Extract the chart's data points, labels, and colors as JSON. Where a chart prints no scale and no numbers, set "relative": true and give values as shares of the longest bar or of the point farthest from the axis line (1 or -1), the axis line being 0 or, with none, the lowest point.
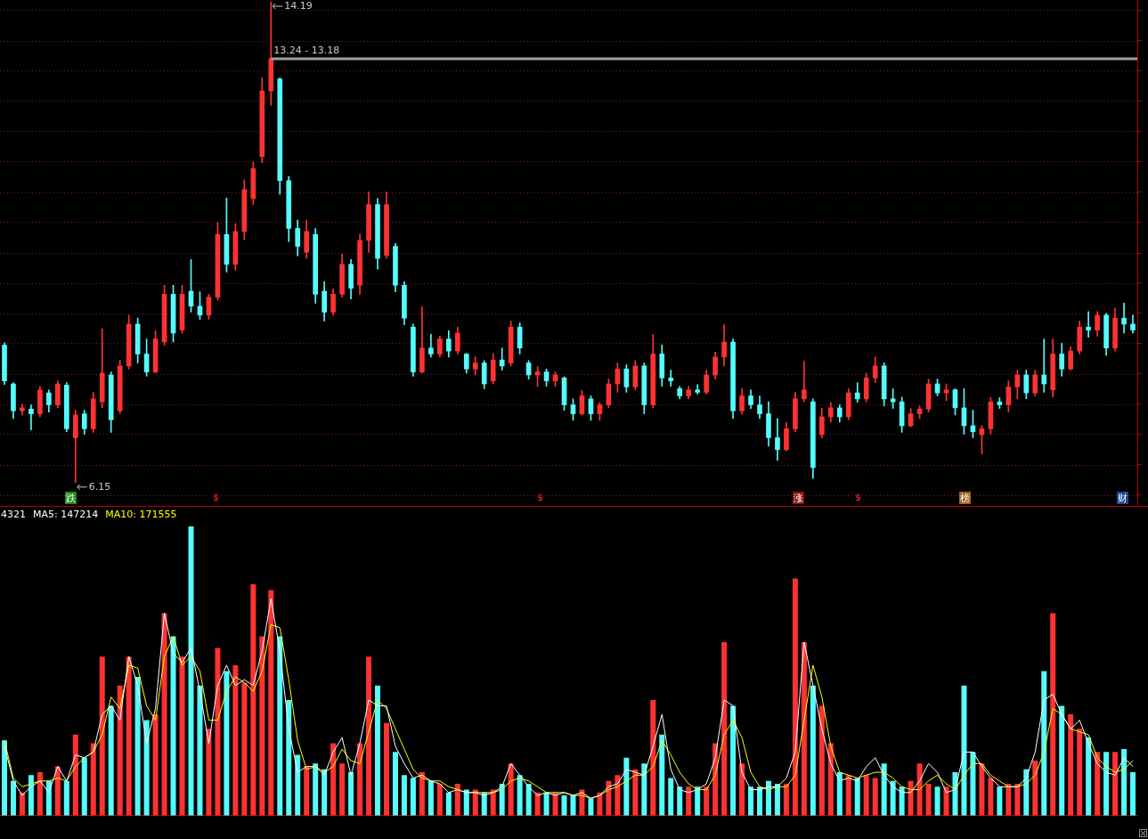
{
  "chart_data": [
    {
      "type": "candlestick",
      "categories": [
        null,
        null,
        null,
        null,
        null,
        null,
        null,
        null,
        null,
        null,
        null,
        null,
        null,
        null,
        null,
        null,
        null,
        null,
        null,
        null,
        null,
        null,
        null,
        null,
        null,
        null,
        null,
        null,
        null,
        null,
        null,
        null,
        null,
        null,
        null,
        null,
        null,
        null,
        null,
        null,
        null,
        null,
        null,
        null,
        null,
        null,
        null,
        null,
        null,
        null,
        null,
        null,
        null,
        null,
        null,
        null,
        null,
        null,
        null,
        null,
        null,
        null,
        null,
        null,
        null,
        null,
        null,
        null,
        null,
        null,
        null,
        null,
        null,
        null,
        null,
        null,
        null,
        null,
        null,
        null,
        null,
        null,
        null,
        null,
        null,
        null,
        null,
        null,
        null,
        null,
        null,
        null,
        null,
        null,
        null,
        null,
        null,
        null,
        null,
        null,
        null,
        null,
        null,
        null,
        null,
        null,
        null,
        null,
        null,
        null,
        null,
        null,
        null,
        null,
        null,
        null,
        null,
        null,
        null,
        null,
        null,
        null,
        null,
        null,
        null,
        null,
        null,
        null
      ],
      "ohlc": [
        [
          8.45,
          8.49,
          7.79,
          7.85
        ],
        [
          7.8,
          7.82,
          7.22,
          7.35
        ],
        [
          7.35,
          7.46,
          7.28,
          7.4
        ],
        [
          7.38,
          7.45,
          7.03,
          7.3
        ],
        [
          7.3,
          7.76,
          7.25,
          7.7
        ],
        [
          7.65,
          7.7,
          7.33,
          7.45
        ],
        [
          7.45,
          7.85,
          7.4,
          7.8
        ],
        [
          7.78,
          7.82,
          7.0,
          7.05
        ],
        [
          6.9,
          7.36,
          6.15,
          7.28
        ],
        [
          7.3,
          7.36,
          6.96,
          7.05
        ],
        [
          7.05,
          7.66,
          6.99,
          7.55
        ],
        [
          7.5,
          8.72,
          7.4,
          7.98
        ],
        [
          7.95,
          8.0,
          6.99,
          7.2
        ],
        [
          7.35,
          8.2,
          7.3,
          8.1
        ],
        [
          8.1,
          8.95,
          8.05,
          8.8
        ],
        [
          8.8,
          8.9,
          8.15,
          8.3
        ],
        [
          8.3,
          8.55,
          7.93,
          8.0
        ],
        [
          8.0,
          8.69,
          7.98,
          8.55
        ],
        [
          8.5,
          9.45,
          8.45,
          9.3
        ],
        [
          9.3,
          9.45,
          8.5,
          8.65
        ],
        [
          8.7,
          9.45,
          8.65,
          9.3
        ],
        [
          9.35,
          9.88,
          9.0,
          9.1
        ],
        [
          9.1,
          9.34,
          8.88,
          8.95
        ],
        [
          8.95,
          9.3,
          8.88,
          9.25
        ],
        [
          9.25,
          10.5,
          9.2,
          10.3
        ],
        [
          10.3,
          10.91,
          9.67,
          9.8
        ],
        [
          9.8,
          10.48,
          9.7,
          10.35
        ],
        [
          10.35,
          11.21,
          10.21,
          11.05
        ],
        [
          10.9,
          11.51,
          10.8,
          11.4
        ],
        [
          11.6,
          12.92,
          11.5,
          12.7
        ],
        [
          12.7,
          14.19,
          12.46,
          13.24
        ],
        [
          12.9,
          12.92,
          10.97,
          11.2
        ],
        [
          11.2,
          11.27,
          10.18,
          10.4
        ],
        [
          10.4,
          10.54,
          9.94,
          10.1
        ],
        [
          10.0,
          10.54,
          9.9,
          10.35
        ],
        [
          10.3,
          10.4,
          9.15,
          9.3
        ],
        [
          9.35,
          9.51,
          8.85,
          9.0
        ],
        [
          9.0,
          9.39,
          8.95,
          9.3
        ],
        [
          9.3,
          9.97,
          9.25,
          9.8
        ],
        [
          9.8,
          9.88,
          9.22,
          9.4
        ],
        [
          9.45,
          10.3,
          9.3,
          10.2
        ],
        [
          10.2,
          11.01,
          10.0,
          10.8
        ],
        [
          10.8,
          10.9,
          9.72,
          9.9
        ],
        [
          9.95,
          11.01,
          9.9,
          10.8
        ],
        [
          10.1,
          10.15,
          9.34,
          9.45
        ],
        [
          9.45,
          9.51,
          8.79,
          8.9
        ],
        [
          8.75,
          8.8,
          7.93,
          8.0
        ],
        [
          8.0,
          9.09,
          7.98,
          8.4
        ],
        [
          8.4,
          8.63,
          8.25,
          8.3
        ],
        [
          8.3,
          8.6,
          8.25,
          8.55
        ],
        [
          8.55,
          8.69,
          8.25,
          8.35
        ],
        [
          8.35,
          8.75,
          8.3,
          8.65
        ],
        [
          8.3,
          8.31,
          7.98,
          8.05
        ],
        [
          8.05,
          8.25,
          7.95,
          8.15
        ],
        [
          8.15,
          8.19,
          7.72,
          7.8
        ],
        [
          7.85,
          8.31,
          7.8,
          8.2
        ],
        [
          8.2,
          8.4,
          8.03,
          8.1
        ],
        [
          8.15,
          8.85,
          8.1,
          8.75
        ],
        [
          8.75,
          8.82,
          8.3,
          8.4
        ],
        [
          8.15,
          8.19,
          7.88,
          7.95
        ],
        [
          7.95,
          8.09,
          7.76,
          8.0
        ],
        [
          8.0,
          8.05,
          7.76,
          7.85
        ],
        [
          7.85,
          8.0,
          7.76,
          7.95
        ],
        [
          7.9,
          7.92,
          7.36,
          7.45
        ],
        [
          7.45,
          7.55,
          7.19,
          7.3
        ],
        [
          7.3,
          7.69,
          7.28,
          7.6
        ],
        [
          7.55,
          7.6,
          7.19,
          7.3
        ],
        [
          7.3,
          7.49,
          7.19,
          7.45
        ],
        [
          7.45,
          7.88,
          7.4,
          7.8
        ],
        [
          7.8,
          8.15,
          7.66,
          8.05
        ],
        [
          8.05,
          8.12,
          7.66,
          7.75
        ],
        [
          7.75,
          8.19,
          7.7,
          8.1
        ],
        [
          8.1,
          8.15,
          7.3,
          7.45
        ],
        [
          7.45,
          8.63,
          7.4,
          8.3
        ],
        [
          8.3,
          8.45,
          7.76,
          7.9
        ],
        [
          7.9,
          8.03,
          7.76,
          7.85
        ],
        [
          7.72,
          7.76,
          7.55,
          7.6
        ],
        [
          7.6,
          7.76,
          7.55,
          7.7
        ],
        [
          7.7,
          7.79,
          7.63,
          7.66
        ],
        [
          7.66,
          8.03,
          7.63,
          7.95
        ],
        [
          7.95,
          8.33,
          7.88,
          8.25
        ],
        [
          8.25,
          8.79,
          8.1,
          8.5
        ],
        [
          8.5,
          8.55,
          7.22,
          7.35
        ],
        [
          7.35,
          7.72,
          7.3,
          7.6
        ],
        [
          7.6,
          7.7,
          7.39,
          7.45
        ],
        [
          7.45,
          7.6,
          7.22,
          7.3
        ],
        [
          7.3,
          7.5,
          6.76,
          6.9
        ],
        [
          6.9,
          7.22,
          6.52,
          6.7
        ],
        [
          6.7,
          7.16,
          6.68,
          7.05
        ],
        [
          7.05,
          7.66,
          7.0,
          7.55
        ],
        [
          7.55,
          8.18,
          7.5,
          7.7
        ],
        [
          7.5,
          7.55,
          6.22,
          6.4
        ],
        [
          6.95,
          7.39,
          6.9,
          7.25
        ],
        [
          7.25,
          7.49,
          7.16,
          7.4
        ],
        [
          7.4,
          7.45,
          7.16,
          7.25
        ],
        [
          7.25,
          7.72,
          7.2,
          7.65
        ],
        [
          7.65,
          7.82,
          7.49,
          7.55
        ],
        [
          7.55,
          7.98,
          7.5,
          7.9
        ],
        [
          7.9,
          8.25,
          7.82,
          8.1
        ],
        [
          8.1,
          8.15,
          7.43,
          7.55
        ],
        [
          7.55,
          7.72,
          7.39,
          7.5
        ],
        [
          7.5,
          7.58,
          6.99,
          7.1
        ],
        [
          7.1,
          7.39,
          7.08,
          7.3
        ],
        [
          7.3,
          7.43,
          7.22,
          7.38
        ],
        [
          7.38,
          7.88,
          7.33,
          7.8
        ],
        [
          7.8,
          7.88,
          7.6,
          7.65
        ],
        [
          7.65,
          7.8,
          7.52,
          7.7
        ],
        [
          7.7,
          7.72,
          7.28,
          7.4
        ],
        [
          7.4,
          7.72,
          6.96,
          7.1
        ],
        [
          7.1,
          7.36,
          6.9,
          7.0
        ],
        [
          6.95,
          7.1,
          6.63,
          7.05
        ],
        [
          7.05,
          7.57,
          6.96,
          7.5
        ],
        [
          7.5,
          7.57,
          7.39,
          7.45
        ],
        [
          7.45,
          7.85,
          7.33,
          7.75
        ],
        [
          7.75,
          8.03,
          7.55,
          7.95
        ],
        [
          7.95,
          8.03,
          7.55,
          7.65
        ],
        [
          7.65,
          8.03,
          7.6,
          7.95
        ],
        [
          7.95,
          8.55,
          7.66,
          7.8
        ],
        [
          7.7,
          8.55,
          7.58,
          8.3
        ],
        [
          8.3,
          8.48,
          7.93,
          8.05
        ],
        [
          8.05,
          8.42,
          8.03,
          8.35
        ],
        [
          8.35,
          8.85,
          8.3,
          8.75
        ],
        [
          8.75,
          9.01,
          8.58,
          8.7
        ],
        [
          8.7,
          9.01,
          8.6,
          8.95
        ],
        [
          8.95,
          8.98,
          8.28,
          8.4
        ],
        [
          8.4,
          9.07,
          8.35,
          8.9
        ],
        [
          8.9,
          9.15,
          8.65,
          8.8
        ],
        [
          8.8,
          8.95,
          8.65,
          8.7
        ]
      ],
      "colors": [
        "#54fcfc",
        "#54fcfc",
        "#ff3232",
        "#54fcfc",
        "#ff3232",
        "#54fcfc",
        "#ff3232",
        "#54fcfc",
        "#ff3232",
        "#54fcfc",
        "#ff3232",
        "#ff3232",
        "#54fcfc",
        "#ff3232",
        "#ff3232",
        "#54fcfc",
        "#54fcfc",
        "#ff3232",
        "#ff3232",
        "#54fcfc",
        "#ff3232",
        "#54fcfc",
        "#54fcfc",
        "#ff3232",
        "#ff3232",
        "#54fcfc",
        "#ff3232",
        "#ff3232",
        "#ff3232",
        "#ff3232",
        "#ff3232",
        "#54fcfc",
        "#54fcfc",
        "#54fcfc",
        "#ff3232",
        "#54fcfc",
        "#54fcfc",
        "#ff3232",
        "#ff3232",
        "#54fcfc",
        "#ff3232",
        "#ff3232",
        "#54fcfc",
        "#ff3232",
        "#54fcfc",
        "#54fcfc",
        "#54fcfc",
        "#ff3232",
        "#54fcfc",
        "#ff3232",
        "#54fcfc",
        "#ff3232",
        "#54fcfc",
        "#ff3232",
        "#54fcfc",
        "#ff3232",
        "#54fcfc",
        "#ff3232",
        "#54fcfc",
        "#54fcfc",
        "#ff3232",
        "#54fcfc",
        "#ff3232",
        "#54fcfc",
        "#54fcfc",
        "#ff3232",
        "#54fcfc",
        "#ff3232",
        "#ff3232",
        "#ff3232",
        "#54fcfc",
        "#ff3232",
        "#54fcfc",
        "#ff3232",
        "#54fcfc",
        "#54fcfc",
        "#54fcfc",
        "#ff3232",
        "#54fcfc",
        "#ff3232",
        "#ff3232",
        "#ff3232",
        "#54fcfc",
        "#ff3232",
        "#54fcfc",
        "#54fcfc",
        "#54fcfc",
        "#54fcfc",
        "#ff3232",
        "#ff3232",
        "#ff3232",
        "#54fcfc",
        "#ff3232",
        "#ff3232",
        "#54fcfc",
        "#ff3232",
        "#54fcfc",
        "#ff3232",
        "#ff3232",
        "#54fcfc",
        "#54fcfc",
        "#54fcfc",
        "#ff3232",
        "#ff3232",
        "#ff3232",
        "#54fcfc",
        "#ff3232",
        "#54fcfc",
        "#54fcfc",
        "#54fcfc",
        "#ff3232",
        "#ff3232",
        "#54fcfc",
        "#ff3232",
        "#ff3232",
        "#54fcfc",
        "#ff3232",
        "#54fcfc",
        "#ff3232",
        "#54fcfc",
        "#ff3232",
        "#ff3232",
        "#54fcfc",
        "#ff3232",
        "#54fcfc",
        "#ff3232",
        "#54fcfc",
        "#54fcfc"
      ],
      "ylim": [
        5.76,
        14.22
      ],
      "yticks": [
        {
          "value": 5.94,
          "label": null
        },
        {
          "value": 6.45,
          "label": null
        },
        {
          "value": 6.96,
          "label": null
        },
        {
          "value": 7.46,
          "label": null
        },
        {
          "value": 7.97,
          "label": null
        },
        {
          "value": 8.48,
          "label": null
        },
        {
          "value": 8.98,
          "label": null
        },
        {
          "value": 9.49,
          "label": null
        },
        {
          "value": 9.99,
          "label": null
        },
        {
          "value": 10.51,
          "label": null
        },
        {
          "value": 11.01,
          "label": null
        },
        {
          "value": 11.52,
          "label": null
        },
        {
          "value": 12.03,
          "label": null
        },
        {
          "value": 12.53,
          "label": null
        },
        {
          "value": 13.04,
          "label": null
        },
        {
          "value": 13.54,
          "label": null
        },
        {
          "value": 14.05,
          "label": null
        }
      ],
      "grid": "y",
      "tick_labels": false,
      "ref_lines": [
        {
          "axis": "y",
          "value": 13.24,
          "label": "13.24 - 13.18",
          "color": "#a0a0a0"
        }
      ],
      "annotations": [
        "14.19",
        "6.15",
        "跌",
        "$",
        "$",
        "涨",
        "$",
        "榜",
        "财"
      ]
    },
    {
      "type": "bar",
      "categories": [
        null,
        null,
        null,
        null,
        null,
        null,
        null,
        null,
        null,
        null,
        null,
        null,
        null,
        null,
        null,
        null,
        null,
        null,
        null,
        null,
        null,
        null,
        null,
        null,
        null,
        null,
        null,
        null,
        null,
        null,
        null,
        null,
        null,
        null,
        null,
        null,
        null,
        null,
        null,
        null,
        null,
        null,
        null,
        null,
        null,
        null,
        null,
        null,
        null,
        null,
        null,
        null,
        null,
        null,
        null,
        null,
        null,
        null,
        null,
        null,
        null,
        null,
        null,
        null,
        null,
        null,
        null,
        null,
        null,
        null,
        null,
        null,
        null,
        null,
        null,
        null,
        null,
        null,
        null,
        null,
        null,
        null,
        null,
        null,
        null,
        null,
        null,
        null,
        null,
        null,
        null,
        null,
        null,
        null,
        null,
        null,
        null,
        null,
        null,
        null,
        null,
        null,
        null,
        null,
        null,
        null,
        null,
        null,
        null,
        null,
        null,
        null,
        null,
        null,
        null,
        null,
        null,
        null,
        null,
        null,
        null,
        null,
        null,
        null,
        null,
        null,
        null,
        null
      ],
      "relative": true,
      "series": [
        {
          "type": "bar",
          "values": [
            0.26,
            0.12,
            0.08,
            0.14,
            0.15,
            0.12,
            0.17,
            0.12,
            0.28,
            0.2,
            0.25,
            0.55,
            0.38,
            0.45,
            0.55,
            0.48,
            0.33,
            0.35,
            0.7,
            0.62,
            0.55,
            1.0,
            0.45,
            0.3,
            0.58,
            0.5,
            0.52,
            0.46,
            0.8,
            0.62,
            0.78,
            0.62,
            0.4,
            0.21,
            0.17,
            0.18,
            0.16,
            0.25,
            0.18,
            0.15,
            0.25,
            0.55,
            0.45,
            0.32,
            0.22,
            0.14,
            0.13,
            0.15,
            0.12,
            0.11,
            0.08,
            0.11,
            0.09,
            0.09,
            0.08,
            0.09,
            0.11,
            0.18,
            0.14,
            0.11,
            0.08,
            0.08,
            0.08,
            0.07,
            0.07,
            0.09,
            0.06,
            0.08,
            0.12,
            0.14,
            0.2,
            0.16,
            0.18,
            0.4,
            0.28,
            0.13,
            0.1,
            0.1,
            0.1,
            0.1,
            0.25,
            0.6,
            0.38,
            0.18,
            0.1,
            0.1,
            0.12,
            0.11,
            0.11,
            0.82,
            0.6,
            0.45,
            0.38,
            0.25,
            0.15,
            0.14,
            0.13,
            0.14,
            0.13,
            0.18,
            0.12,
            0.1,
            0.12,
            0.18,
            0.11,
            0.1,
            0.1,
            0.15,
            0.45,
            0.22,
            0.18,
            0.13,
            0.1,
            0.11,
            0.11,
            0.16,
            0.19,
            0.5,
            0.7,
            0.38,
            0.35,
            0.3,
            0.27,
            0.22,
            0.22,
            0.22,
            0.23,
            0.15
          ],
          "colors": [
            "#54fcfc",
            "#54fcfc",
            "#ff3232",
            "#54fcfc",
            "#ff3232",
            "#54fcfc",
            "#ff3232",
            "#54fcfc",
            "#ff3232",
            "#54fcfc",
            "#ff3232",
            "#ff3232",
            "#54fcfc",
            "#ff3232",
            "#ff3232",
            "#54fcfc",
            "#54fcfc",
            "#ff3232",
            "#ff3232",
            "#54fcfc",
            "#ff3232",
            "#54fcfc",
            "#54fcfc",
            "#ff3232",
            "#ff3232",
            "#54fcfc",
            "#ff3232",
            "#ff3232",
            "#ff3232",
            "#ff3232",
            "#ff3232",
            "#54fcfc",
            "#54fcfc",
            "#54fcfc",
            "#ff3232",
            "#54fcfc",
            "#54fcfc",
            "#ff3232",
            "#ff3232",
            "#54fcfc",
            "#ff3232",
            "#ff3232",
            "#54fcfc",
            "#ff3232",
            "#54fcfc",
            "#54fcfc",
            "#54fcfc",
            "#ff3232",
            "#54fcfc",
            "#ff3232",
            "#54fcfc",
            "#ff3232",
            "#54fcfc",
            "#ff3232",
            "#54fcfc",
            "#ff3232",
            "#54fcfc",
            "#ff3232",
            "#54fcfc",
            "#54fcfc",
            "#ff3232",
            "#54fcfc",
            "#ff3232",
            "#54fcfc",
            "#54fcfc",
            "#ff3232",
            "#54fcfc",
            "#ff3232",
            "#ff3232",
            "#ff3232",
            "#54fcfc",
            "#ff3232",
            "#54fcfc",
            "#ff3232",
            "#54fcfc",
            "#54fcfc",
            "#54fcfc",
            "#ff3232",
            "#54fcfc",
            "#ff3232",
            "#ff3232",
            "#ff3232",
            "#54fcfc",
            "#ff3232",
            "#54fcfc",
            "#54fcfc",
            "#54fcfc",
            "#54fcfc",
            "#ff3232",
            "#ff3232",
            "#ff3232",
            "#54fcfc",
            "#ff3232",
            "#ff3232",
            "#54fcfc",
            "#ff3232",
            "#54fcfc",
            "#ff3232",
            "#ff3232",
            "#54fcfc",
            "#54fcfc",
            "#54fcfc",
            "#ff3232",
            "#ff3232",
            "#ff3232",
            "#54fcfc",
            "#ff3232",
            "#54fcfc",
            "#54fcfc",
            "#54fcfc",
            "#ff3232",
            "#ff3232",
            "#54fcfc",
            "#ff3232",
            "#ff3232",
            "#54fcfc",
            "#ff3232",
            "#54fcfc",
            "#ff3232",
            "#54fcfc",
            "#ff3232",
            "#ff3232",
            "#54fcfc",
            "#ff3232",
            "#54fcfc",
            "#ff3232",
            "#54fcfc",
            "#54fcfc"
          ]
        },
        {
          "type": "line",
          "name": "MA5: 147214",
          "color": "#ffffff",
          "values": [
            0.24,
            0.12,
            0.07,
            0.1,
            0.12,
            0.08,
            0.17,
            0.12,
            0.21,
            0.2,
            0.22,
            0.35,
            0.38,
            0.33,
            0.55,
            0.45,
            0.25,
            0.37,
            0.7,
            0.56,
            0.53,
            0.58,
            0.43,
            0.25,
            0.45,
            0.52,
            0.45,
            0.47,
            0.45,
            0.57,
            0.75,
            0.57,
            0.3,
            0.15,
            0.17,
            0.17,
            0.14,
            0.22,
            0.27,
            0.14,
            0.25,
            0.4,
            0.38,
            0.38,
            0.24,
            0.18,
            0.13,
            0.14,
            0.12,
            0.11,
            0.08,
            0.09,
            0.08,
            0.08,
            0.07,
            0.08,
            0.1,
            0.18,
            0.14,
            0.1,
            0.07,
            0.08,
            0.07,
            0.08,
            0.07,
            0.08,
            0.06,
            0.07,
            0.1,
            0.11,
            0.16,
            0.15,
            0.14,
            0.24,
            0.35,
            0.16,
            0.09,
            0.08,
            0.09,
            0.11,
            0.2,
            0.4,
            0.38,
            0.15,
            0.09,
            0.09,
            0.1,
            0.1,
            0.13,
            0.22,
            0.6,
            0.45,
            0.3,
            0.18,
            0.12,
            0.13,
            0.12,
            0.17,
            0.2,
            0.14,
            0.1,
            0.08,
            0.08,
            0.12,
            0.18,
            0.15,
            0.08,
            0.09,
            0.22,
            0.22,
            0.17,
            0.13,
            0.1,
            0.1,
            0.1,
            0.13,
            0.22,
            0.4,
            0.42,
            0.35,
            0.3,
            0.33,
            0.25,
            0.18,
            0.15,
            0.14,
            0.2,
            0.17
          ]
        },
        {
          "type": "line",
          "name": "MA10: 171555",
          "color": "#ffff00",
          "values": [
            0.26,
            0.13,
            0.1,
            0.11,
            0.12,
            0.12,
            0.13,
            0.12,
            0.17,
            0.2,
            0.22,
            0.28,
            0.41,
            0.37,
            0.52,
            0.51,
            0.38,
            0.33,
            0.55,
            0.62,
            0.52,
            0.55,
            0.5,
            0.33,
            0.33,
            0.43,
            0.48,
            0.46,
            0.43,
            0.5,
            0.66,
            0.65,
            0.47,
            0.26,
            0.16,
            0.17,
            0.15,
            0.17,
            0.23,
            0.19,
            0.18,
            0.29,
            0.4,
            0.37,
            0.3,
            0.23,
            0.16,
            0.13,
            0.12,
            0.12,
            0.1,
            0.09,
            0.08,
            0.08,
            0.08,
            0.08,
            0.09,
            0.12,
            0.13,
            0.12,
            0.1,
            0.08,
            0.08,
            0.08,
            0.07,
            0.07,
            0.06,
            0.07,
            0.09,
            0.1,
            0.12,
            0.14,
            0.14,
            0.17,
            0.26,
            0.21,
            0.15,
            0.11,
            0.09,
            0.09,
            0.14,
            0.28,
            0.33,
            0.27,
            0.15,
            0.1,
            0.09,
            0.1,
            0.1,
            0.14,
            0.33,
            0.52,
            0.41,
            0.24,
            0.15,
            0.14,
            0.13,
            0.14,
            0.15,
            0.15,
            0.13,
            0.1,
            0.09,
            0.09,
            0.12,
            0.14,
            0.11,
            0.09,
            0.14,
            0.18,
            0.18,
            0.14,
            0.12,
            0.1,
            0.1,
            0.11,
            0.14,
            0.22,
            0.37,
            0.35,
            0.3,
            0.29,
            0.28,
            0.2,
            0.17,
            0.15,
            0.16,
            0.19
          ]
        }
      ],
      "legend": "top left",
      "marker": "none",
      "annotations": [
        "4321"
      ]
    }
  ]
}
